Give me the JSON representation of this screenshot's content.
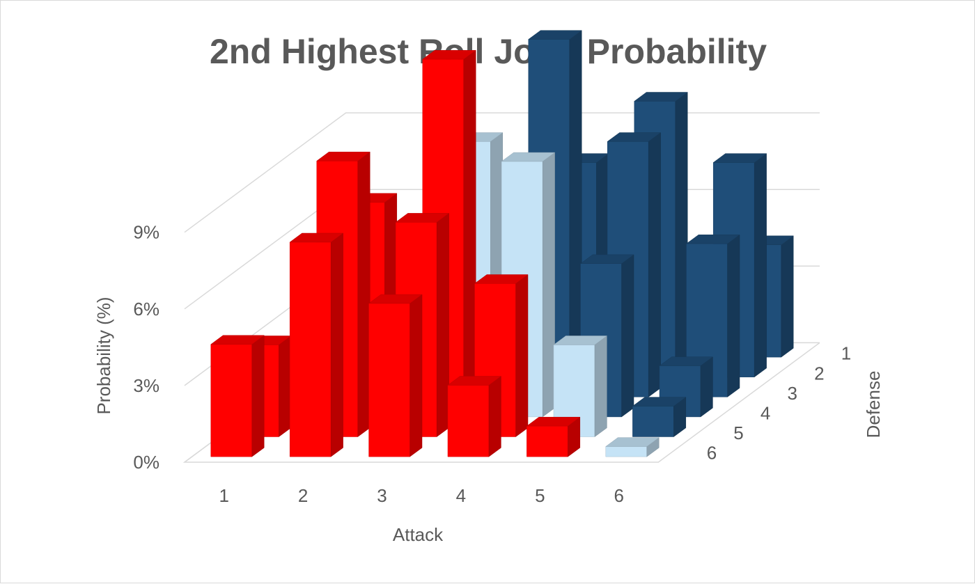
{
  "chart_data": {
    "type": "bar3d",
    "title": "2nd Highest Roll Joint Probability",
    "xlabel": "Attack",
    "ylabel": "Defense",
    "zlabel": "Probability (%)",
    "attack_ticks": [
      "1",
      "2",
      "3",
      "4",
      "5",
      "6"
    ],
    "defense_ticks": [
      "1",
      "2",
      "3",
      "4",
      "5",
      "6"
    ],
    "z_ticks": [
      "0%",
      "3%",
      "6%",
      "9%"
    ],
    "z_tick_values": [
      0,
      3,
      6,
      9
    ],
    "zlim": [
      0,
      12
    ],
    "grid": true,
    "legend": "none",
    "colors": {
      "attack_wins": "#1f4e79",
      "tie": "#c5e3f6",
      "defense_wins": "#ff0000"
    },
    "series": [
      {
        "defense": 1,
        "values": [
          0.4,
          1.2,
          2.0,
          2.8,
          3.6,
          4.4
        ]
      },
      {
        "defense": 2,
        "values": [
          1.2,
          3.6,
          6.0,
          8.4,
          10.8,
          8.4
        ]
      },
      {
        "defense": 3,
        "values": [
          2.0,
          6.0,
          10.0,
          14.0,
          10.0,
          6.0
        ]
      },
      {
        "defense": 4,
        "values": [
          2.8,
          8.4,
          14.0,
          10.0,
          6.0,
          2.0
        ]
      },
      {
        "defense": 5,
        "values": [
          3.6,
          10.8,
          8.4,
          6.0,
          3.6,
          1.2
        ]
      },
      {
        "defense": 6,
        "values": [
          4.4,
          8.4,
          6.0,
          2.8,
          1.2,
          0.4
        ]
      }
    ]
  }
}
